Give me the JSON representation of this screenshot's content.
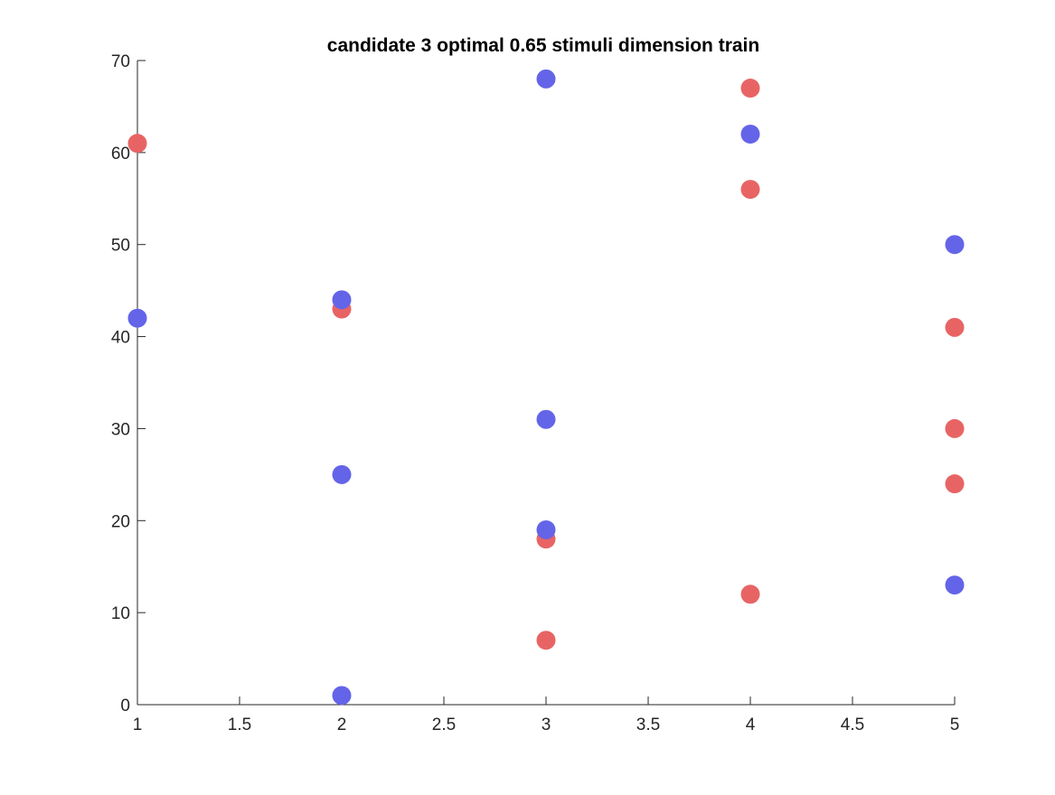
{
  "chart_data": {
    "type": "scatter",
    "title": "candidate 3 optimal 0.65 stimuli dimension train",
    "xlabel": "",
    "ylabel": "",
    "xlim": [
      1,
      5
    ],
    "ylim": [
      0,
      70
    ],
    "x_ticks": [
      "1",
      "1.5",
      "2",
      "2.5",
      "3",
      "3.5",
      "4",
      "4.5",
      "5"
    ],
    "y_ticks": [
      "0",
      "10",
      "20",
      "30",
      "40",
      "50",
      "60",
      "70"
    ],
    "grid": false,
    "legend": "none",
    "series": [
      {
        "color": "#e86464",
        "points": [
          {
            "x": 1,
            "y": 61
          },
          {
            "x": 2,
            "y": 43
          },
          {
            "x": 3,
            "y": 18
          },
          {
            "x": 3,
            "y": 7
          },
          {
            "x": 4,
            "y": 67
          },
          {
            "x": 4,
            "y": 56
          },
          {
            "x": 4,
            "y": 12
          },
          {
            "x": 5,
            "y": 41
          },
          {
            "x": 5,
            "y": 30
          },
          {
            "x": 5,
            "y": 24
          }
        ]
      },
      {
        "color": "#6464e8",
        "points": [
          {
            "x": 1,
            "y": 42
          },
          {
            "x": 2,
            "y": 44
          },
          {
            "x": 2,
            "y": 25
          },
          {
            "x": 2,
            "y": 1
          },
          {
            "x": 3,
            "y": 68
          },
          {
            "x": 3,
            "y": 31
          },
          {
            "x": 3,
            "y": 19
          },
          {
            "x": 4,
            "y": 62
          },
          {
            "x": 5,
            "y": 50
          },
          {
            "x": 5,
            "y": 13
          }
        ]
      }
    ]
  }
}
